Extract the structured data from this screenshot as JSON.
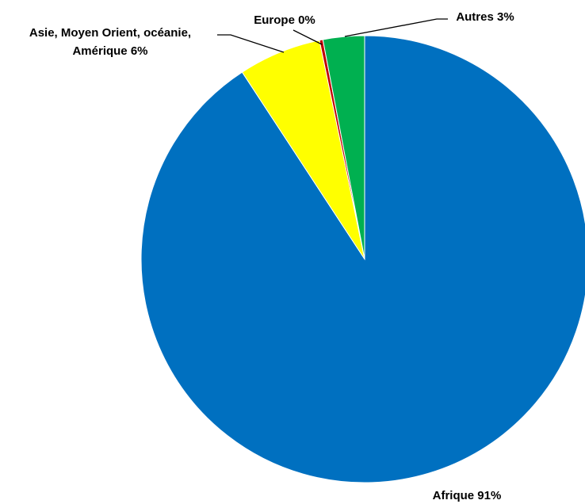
{
  "chart_data": {
    "type": "pie",
    "title": "",
    "start_angle_deg": 0,
    "direction": "clockwise",
    "slices": [
      {
        "label": "Afrique 91%",
        "value": 91.0,
        "color": "#0070C0"
      },
      {
        "label": "Asie, Moyen Orient, océanie,",
        "label_line2": "Amérique 6%",
        "value": 6.0,
        "color": "#FFFF00"
      },
      {
        "label": "Europe 0%",
        "value": 0.25,
        "color": "#C00000"
      },
      {
        "label": "Autres 3%",
        "value": 3.0,
        "color": "#00B050"
      }
    ]
  }
}
